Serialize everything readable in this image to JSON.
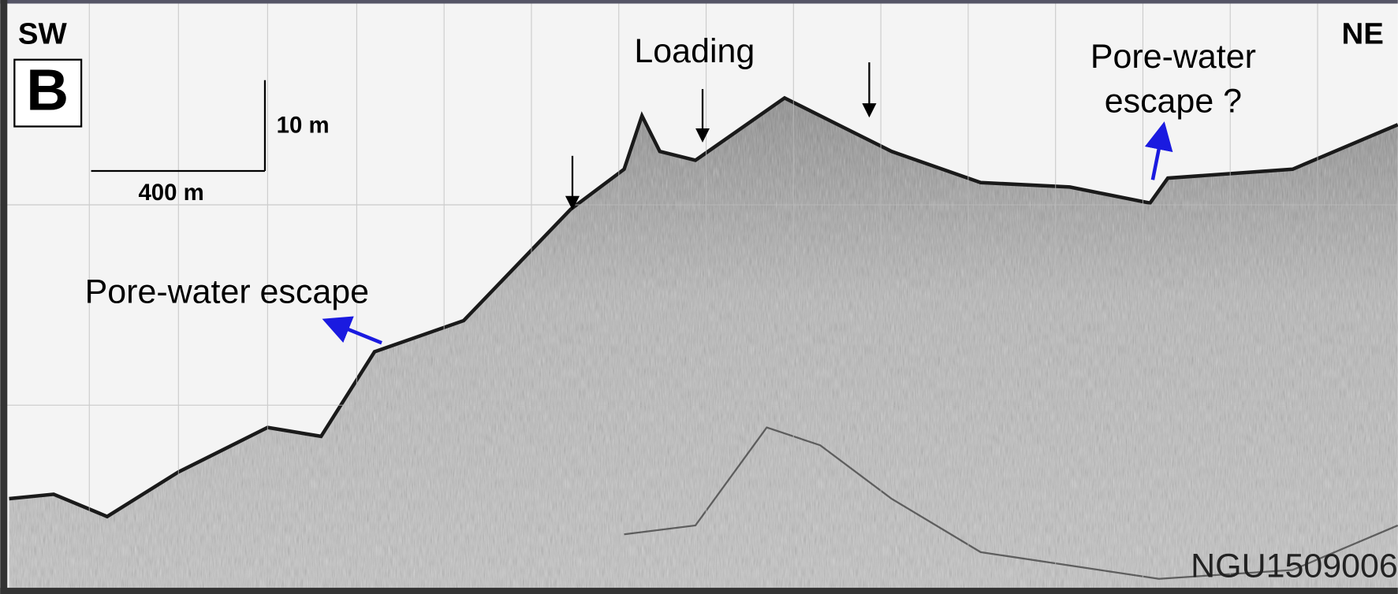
{
  "labels": {
    "sw": "SW",
    "panel": "B",
    "ne": "NE",
    "vertical_scale": "10 m",
    "horizontal_scale": "400 m",
    "loading": "Loading",
    "pore_water_left": "Pore-water escape",
    "pore_water_right": [
      "Pore-water",
      "escape ?"
    ],
    "profile_id": "NGU1509006"
  }
}
